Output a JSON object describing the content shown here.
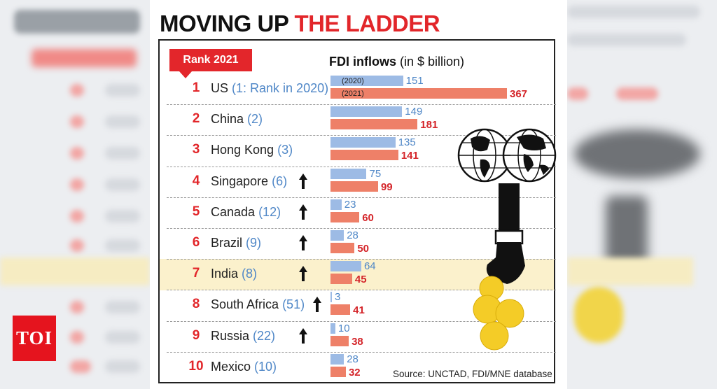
{
  "title": {
    "part1": "MOVING UP",
    "part2": "THE LADDER"
  },
  "rank_label": "Rank 2021",
  "fdi_header": {
    "bold": "FDI inflows",
    "rest": "(in $ billion)"
  },
  "legend": {
    "y2020": "(2020)",
    "y2021": "(2021)"
  },
  "source": "Source: UNCTAD, FDI/MNE database",
  "logo": "TOI",
  "colors": {
    "bar_2020": "#9dbbe5",
    "bar_2021": "#ee8068",
    "accent": "#e2262a",
    "highlight": "#fbf1cc"
  },
  "chart_data": {
    "type": "bar",
    "title": "MOVING UP THE LADDER",
    "ylabel": "FDI inflows (in $ billion)",
    "categories": [
      "US",
      "China",
      "Hong Kong",
      "Singapore",
      "Canada",
      "Brazil",
      "India",
      "South Africa",
      "Russia",
      "Mexico"
    ],
    "rank_2021": [
      1,
      2,
      3,
      4,
      5,
      6,
      7,
      8,
      9,
      10
    ],
    "prev_rank_labels": [
      "(1: Rank in 2020)",
      "(2)",
      "(3)",
      "(6)",
      "(12)",
      "(9)",
      "(8)",
      "(51)",
      "(22)",
      "(10)"
    ],
    "moved_up": [
      false,
      false,
      false,
      true,
      true,
      true,
      true,
      true,
      true,
      false
    ],
    "highlighted": "India",
    "series": [
      {
        "name": "(2020)",
        "values": [
          151,
          149,
          135,
          75,
          23,
          28,
          64,
          3,
          10,
          28
        ]
      },
      {
        "name": "(2021)",
        "values": [
          367,
          181,
          141,
          99,
          60,
          50,
          45,
          41,
          38,
          32
        ]
      }
    ],
    "xlim": [
      0,
      367
    ]
  }
}
